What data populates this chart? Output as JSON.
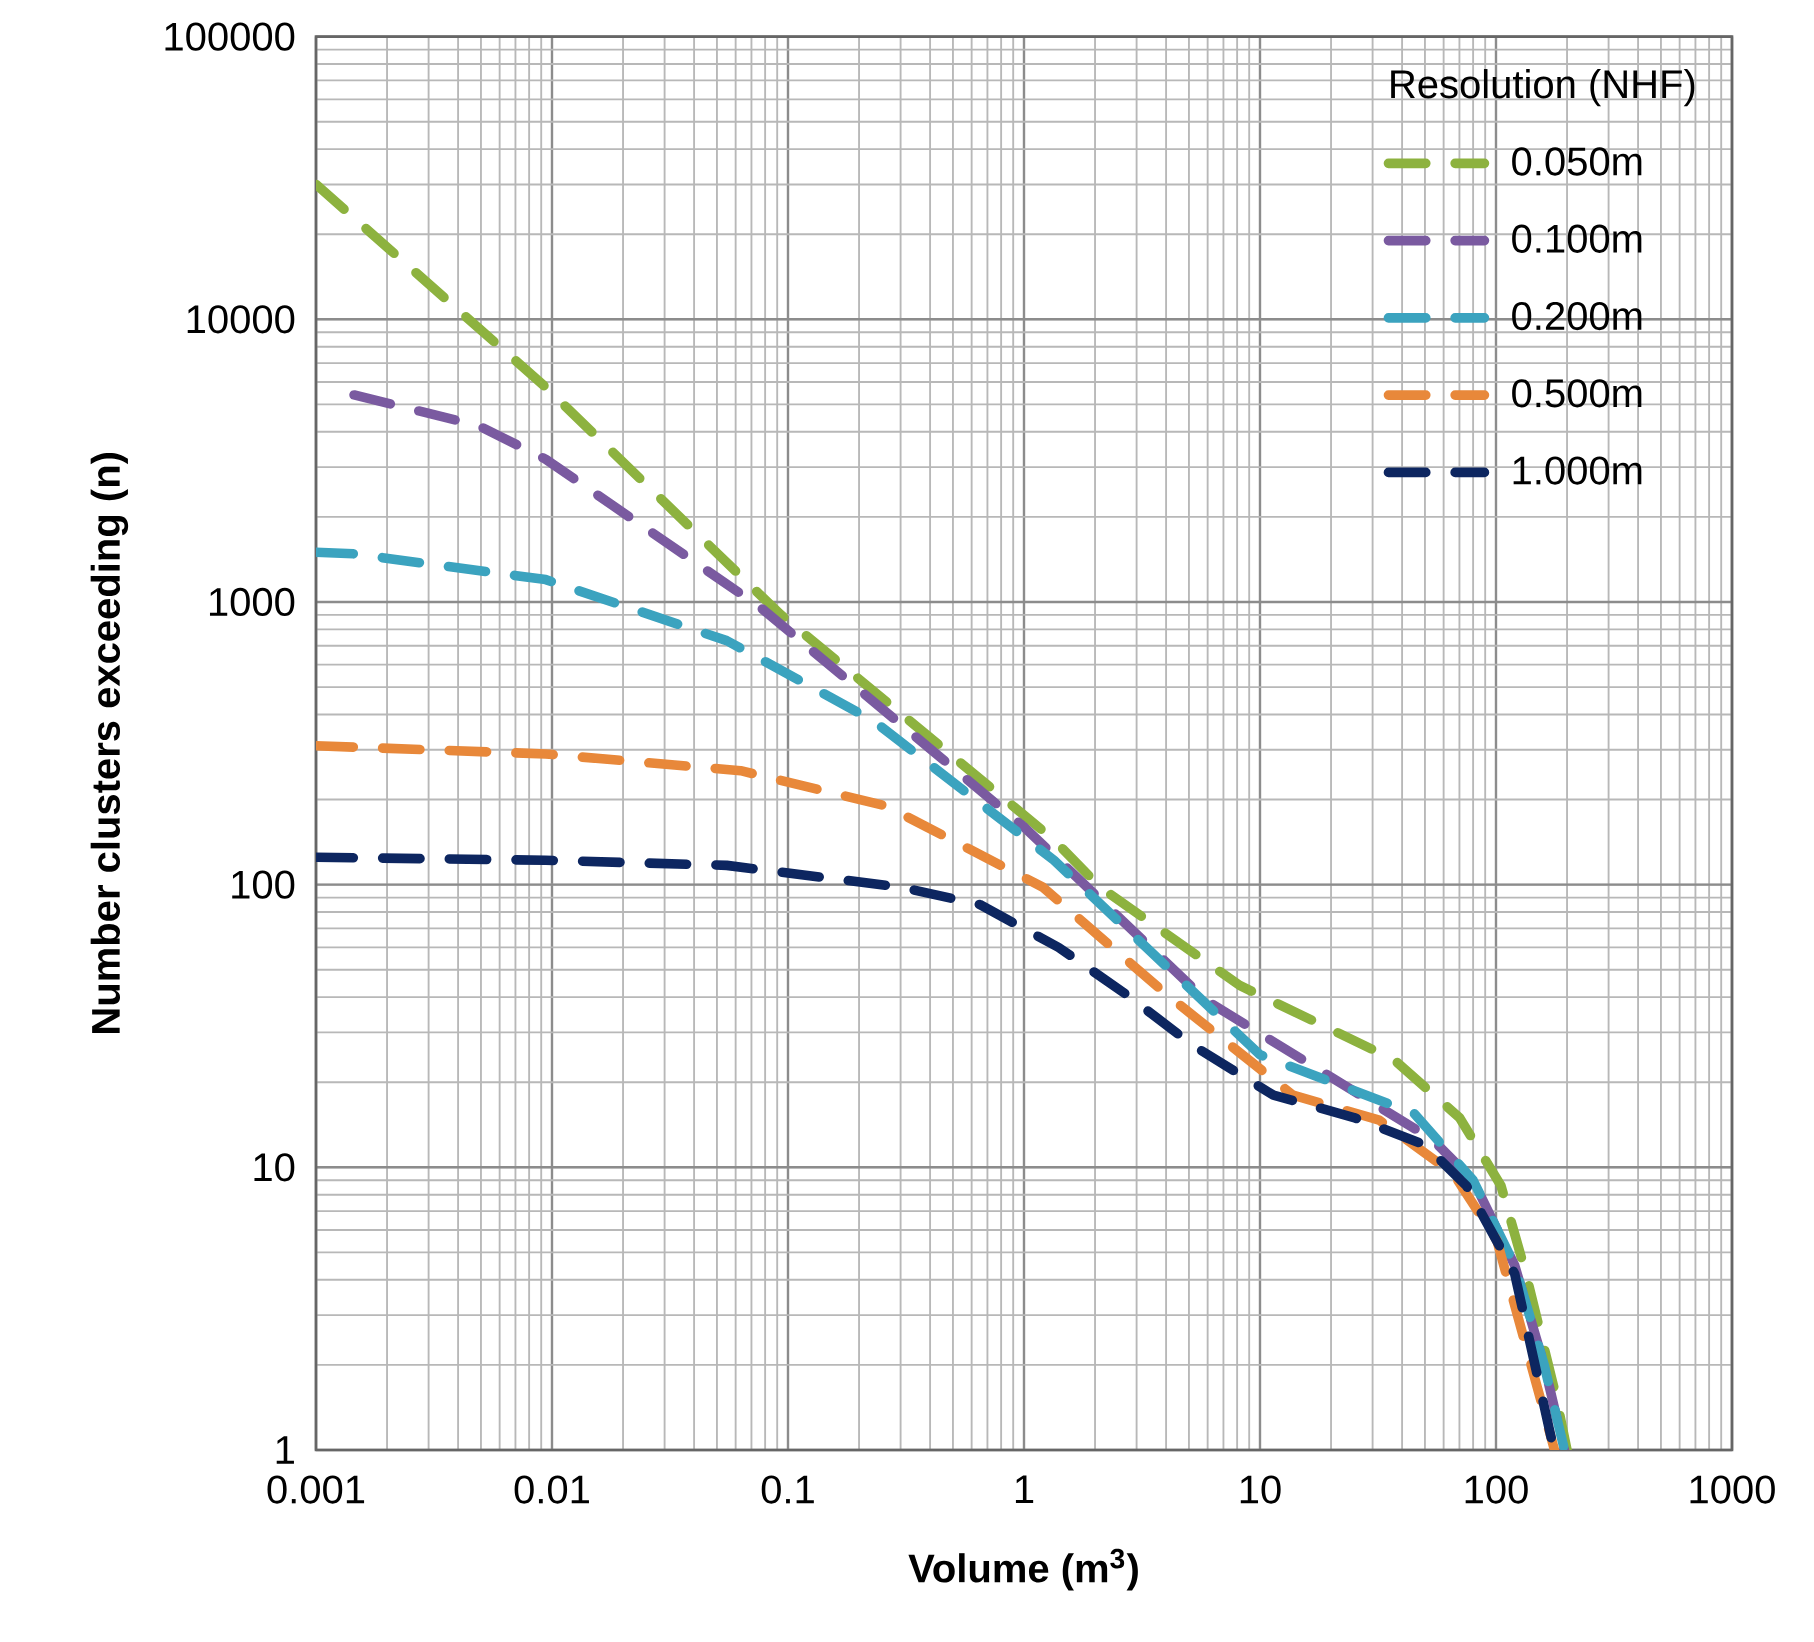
{
  "chart_data": {
    "type": "line",
    "xlabel": "Volume (m$^{3}$)",
    "ylabel": "Number clusters exceeding (n)",
    "legend_title": "Resolution (NHF)",
    "log": "xy",
    "grid": true,
    "legend": "top right",
    "line_style": "dashed",
    "marker": "none",
    "xlim": [
      0.001,
      1000
    ],
    "ylim": [
      1,
      100000
    ],
    "xticks": [
      0.001,
      0.01,
      0.1,
      1,
      10,
      100,
      1000
    ],
    "yticks": [
      1,
      10,
      100,
      1000,
      10000,
      100000
    ],
    "series": [
      {
        "name": "0.050m",
        "color": "#8db23f",
        "x": [
          0.001,
          0.0093,
          0.092,
          1.34,
          2.1,
          8.2,
          37,
          70,
          105,
          134,
          178,
          200
        ],
        "values": [
          30000,
          5800,
          910,
          144,
          98,
          44,
          24,
          15,
          8.6,
          4.2,
          1.6,
          1
        ]
      },
      {
        "name": "0.100m",
        "color": "#7a5aa0",
        "x": [
          0.00145,
          0.0049,
          0.0094,
          0.076,
          1.0,
          5.9,
          26.6,
          54,
          80,
          120,
          160,
          195
        ],
        "values": [
          5400,
          4200,
          3200,
          960,
          160,
          39,
          18,
          12.5,
          9,
          4.5,
          2,
          1
        ]
      },
      {
        "name": "0.200m",
        "color": "#3ba3bf",
        "x": [
          0.001,
          0.00145,
          0.0094,
          0.055,
          0.23,
          1.34,
          10,
          45,
          80,
          120,
          160,
          195
        ],
        "values": [
          1500,
          1480,
          1200,
          730,
          380,
          122,
          25,
          15.5,
          9,
          4.5,
          2,
          1
        ]
      },
      {
        "name": "0.500m",
        "color": "#e8883a",
        "x": [
          0.001,
          0.0094,
          0.063,
          0.26,
          1.2,
          4.0,
          13.8,
          32,
          66,
          101,
          177
        ],
        "values": [
          310,
          290,
          253,
          190,
          98,
          41,
          18,
          14.7,
          9.5,
          5.5,
          1
        ]
      },
      {
        "name": "1.000m",
        "color": "#0d2660",
        "x": [
          0.001,
          0.0094,
          0.055,
          0.3,
          0.65,
          1.4,
          2.7,
          5.2,
          11.4,
          25,
          50,
          75,
          120,
          176
        ],
        "values": [
          125,
          122,
          117,
          98,
          85,
          60,
          41,
          27,
          18,
          15,
          12,
          8.6,
          4.2,
          1
        ]
      }
    ]
  }
}
